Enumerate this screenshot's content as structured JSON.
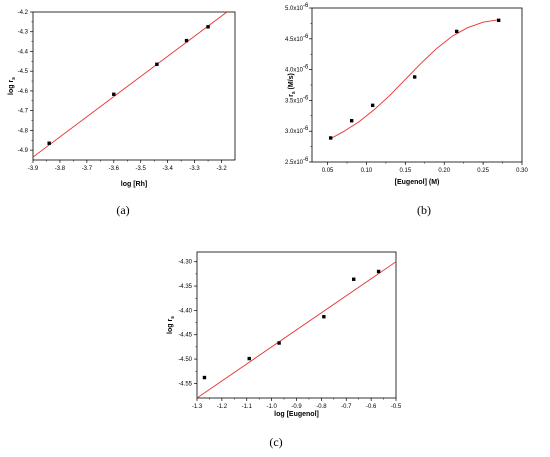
{
  "chart_data": [
    {
      "id": "a",
      "type": "scatter",
      "caption": "(a)",
      "xlabel": "log [Rh]",
      "ylabel_base": "log r",
      "ylabel_sub": "s",
      "xlim": [
        -3.9,
        -3.15
      ],
      "ylim": [
        -4.95,
        -4.2
      ],
      "x_ticks": [
        -3.9,
        -3.8,
        -3.7,
        -3.6,
        -3.5,
        -3.4,
        -3.3,
        -3.2
      ],
      "x_tick_labels": [
        "-3.9",
        "-3.8",
        "-3.7",
        "-3.6",
        "-3.5",
        "-3.4",
        "-3.3",
        "-3.2"
      ],
      "y_ticks": [
        -4.9,
        -4.8,
        -4.7,
        -4.6,
        -4.5,
        -4.4,
        -4.3,
        -4.2
      ],
      "y_tick_labels": [
        "-4.9",
        "-4.8",
        "-4.7",
        "-4.6",
        "-4.5",
        "-4.4",
        "-4.3",
        "-4.2"
      ],
      "series": [
        {
          "x": [
            -3.84,
            -3.6,
            -3.44,
            -3.33,
            -3.25
          ],
          "y": [
            -4.865,
            -4.617,
            -4.465,
            -4.345,
            -4.275
          ]
        }
      ],
      "fit_line": {
        "x": [
          -3.9,
          -3.18
        ],
        "y": [
          -4.935,
          -4.2
        ]
      },
      "grid": false,
      "marker_color": "#000000",
      "fit_color": "#e8312f"
    },
    {
      "id": "b",
      "type": "scatter",
      "caption": "(b)",
      "xlabel": "[Eugenol] (M)",
      "ylabel_base": "r",
      "ylabel_sub": "s",
      "ylabel_unit": " (M/s)",
      "xlim": [
        0.03,
        0.3
      ],
      "ylim": [
        2.5e-06,
        5e-06
      ],
      "x_ticks": [
        0.05,
        0.1,
        0.15,
        0.2,
        0.25,
        0.3
      ],
      "x_tick_labels": [
        "0.05",
        "0.10",
        "0.15",
        "0.20",
        "0.25",
        "0.30"
      ],
      "y_ticks": [
        2.5e-06,
        3e-06,
        3.5e-06,
        4e-06,
        4.5e-06,
        5e-06
      ],
      "y_tick_mantissas": [
        "2.5x10",
        "3.0x10",
        "3.5x10",
        "4.0x10",
        "4.5x10",
        "5.0x10"
      ],
      "y_tick_exponent": "-6",
      "series": [
        {
          "x": [
            0.054,
            0.081,
            0.108,
            0.162,
            0.216,
            0.27
          ],
          "y": [
            2.89e-06,
            3.17e-06,
            3.42e-06,
            3.88e-06,
            4.62e-06,
            4.8e-06
          ]
        }
      ],
      "fit_curve": {
        "x": [
          0.054,
          0.07,
          0.09,
          0.11,
          0.13,
          0.15,
          0.17,
          0.19,
          0.21,
          0.23,
          0.25,
          0.27
        ],
        "y": [
          2.88e-06,
          2.99e-06,
          3.15e-06,
          3.35e-06,
          3.58e-06,
          3.84e-06,
          4.1e-06,
          4.34e-06,
          4.54e-06,
          4.68e-06,
          4.77e-06,
          4.81e-06
        ]
      },
      "grid": false,
      "marker_color": "#000000",
      "fit_color": "#e8312f"
    },
    {
      "id": "c",
      "type": "scatter",
      "caption": "(c)",
      "xlabel": "log [Eugenol]",
      "ylabel_base": "log r",
      "ylabel_sub": "s",
      "xlim": [
        -1.3,
        -0.5
      ],
      "ylim": [
        -4.58,
        -4.28
      ],
      "x_ticks": [
        -1.3,
        -1.2,
        -1.1,
        -1.0,
        -0.9,
        -0.8,
        -0.7,
        -0.6,
        -0.5
      ],
      "x_tick_labels": [
        "-1.3",
        "-1.2",
        "-1.1",
        "-1.0",
        "-0.9",
        "-0.8",
        "-0.7",
        "-0.6",
        "-0.5"
      ],
      "y_ticks": [
        -4.55,
        -4.5,
        -4.45,
        -4.4,
        -4.35,
        -4.3
      ],
      "y_tick_labels": [
        "-4.55",
        "-4.50",
        "-4.45",
        "-4.40",
        "-4.35",
        "-4.30"
      ],
      "series": [
        {
          "x": [
            -1.27,
            -1.09,
            -0.97,
            -0.79,
            -0.67,
            -0.57
          ],
          "y": [
            -4.538,
            -4.499,
            -4.467,
            -4.413,
            -4.336,
            -4.32
          ]
        }
      ],
      "fit_line": {
        "x": [
          -1.3,
          -0.5
        ],
        "y": [
          -4.58,
          -4.3
        ]
      },
      "grid": false,
      "marker_color": "#000000",
      "fit_color": "#e8312f"
    }
  ]
}
